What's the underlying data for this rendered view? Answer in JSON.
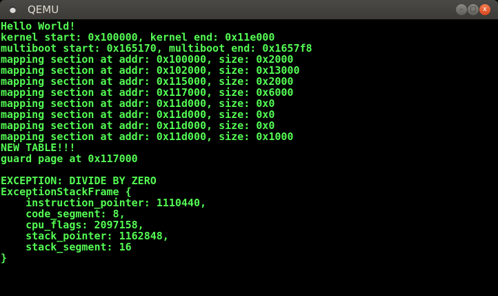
{
  "window": {
    "title": "QEMU",
    "buttons": {
      "minimize": "–",
      "maximize": "□",
      "close": "x"
    },
    "colors": {
      "console_text": "#54fc54",
      "background": "#000000",
      "close_button": "#e55b2e"
    }
  },
  "console": {
    "lines": [
      "Hello World!",
      "kernel start: 0x100000, kernel end: 0x11e000",
      "multiboot start: 0x165170, multiboot end: 0x1657f8",
      "mapping section at addr: 0x100000, size: 0x2000",
      "mapping section at addr: 0x102000, size: 0x13000",
      "mapping section at addr: 0x115000, size: 0x2000",
      "mapping section at addr: 0x117000, size: 0x6000",
      "mapping section at addr: 0x11d000, size: 0x0",
      "mapping section at addr: 0x11d000, size: 0x0",
      "mapping section at addr: 0x11d000, size: 0x0",
      "mapping section at addr: 0x11d000, size: 0x1000",
      "NEW TABLE!!!",
      "guard page at 0x117000",
      "",
      "EXCEPTION: DIVIDE BY ZERO",
      "ExceptionStackFrame {",
      "    instruction_pointer: 1110440,",
      "    code_segment: 8,",
      "    cpu_flags: 2097158,",
      "    stack_pointer: 1162848,",
      "    stack_segment: 16",
      "}"
    ]
  }
}
